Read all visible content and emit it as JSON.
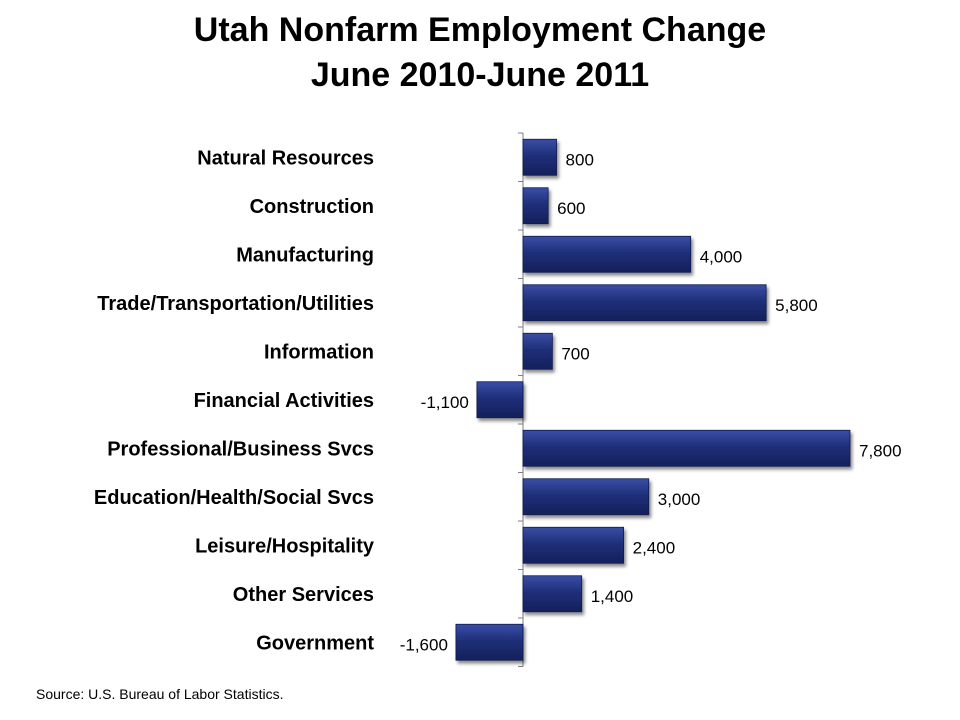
{
  "title_line1": "Utah Nonfarm Employment Change",
  "title_line2": "June 2010-June 2011",
  "source": "Source: U.S. Bureau of Labor Statistics.",
  "colors": {
    "bar": "#1f2f7a",
    "bar_light": "#3a4ea6",
    "axis": "#7f7f7f"
  },
  "chart_data": {
    "type": "bar",
    "orientation": "horizontal",
    "categories": [
      "Natural Resources",
      "Construction",
      "Manufacturing",
      "Trade/Transportation/Utilities",
      "Information",
      "Financial Activities",
      "Professional/Business Svcs",
      "Education/Health/Social Svcs",
      "Leisure/Hospitality",
      "Other Services",
      "Government"
    ],
    "values": [
      800,
      600,
      4000,
      5800,
      700,
      -1100,
      7800,
      3000,
      2400,
      1400,
      -1600
    ],
    "value_labels": [
      "800",
      "600",
      "4,000",
      "5,800",
      "700",
      "-1,100",
      "7,800",
      "3,000",
      "2,400",
      "1,400",
      "-1,600"
    ],
    "title": "Utah Nonfarm Employment Change June 2010-June 2011",
    "xlabel": "",
    "ylabel": "",
    "grid": false,
    "legend": "none"
  }
}
